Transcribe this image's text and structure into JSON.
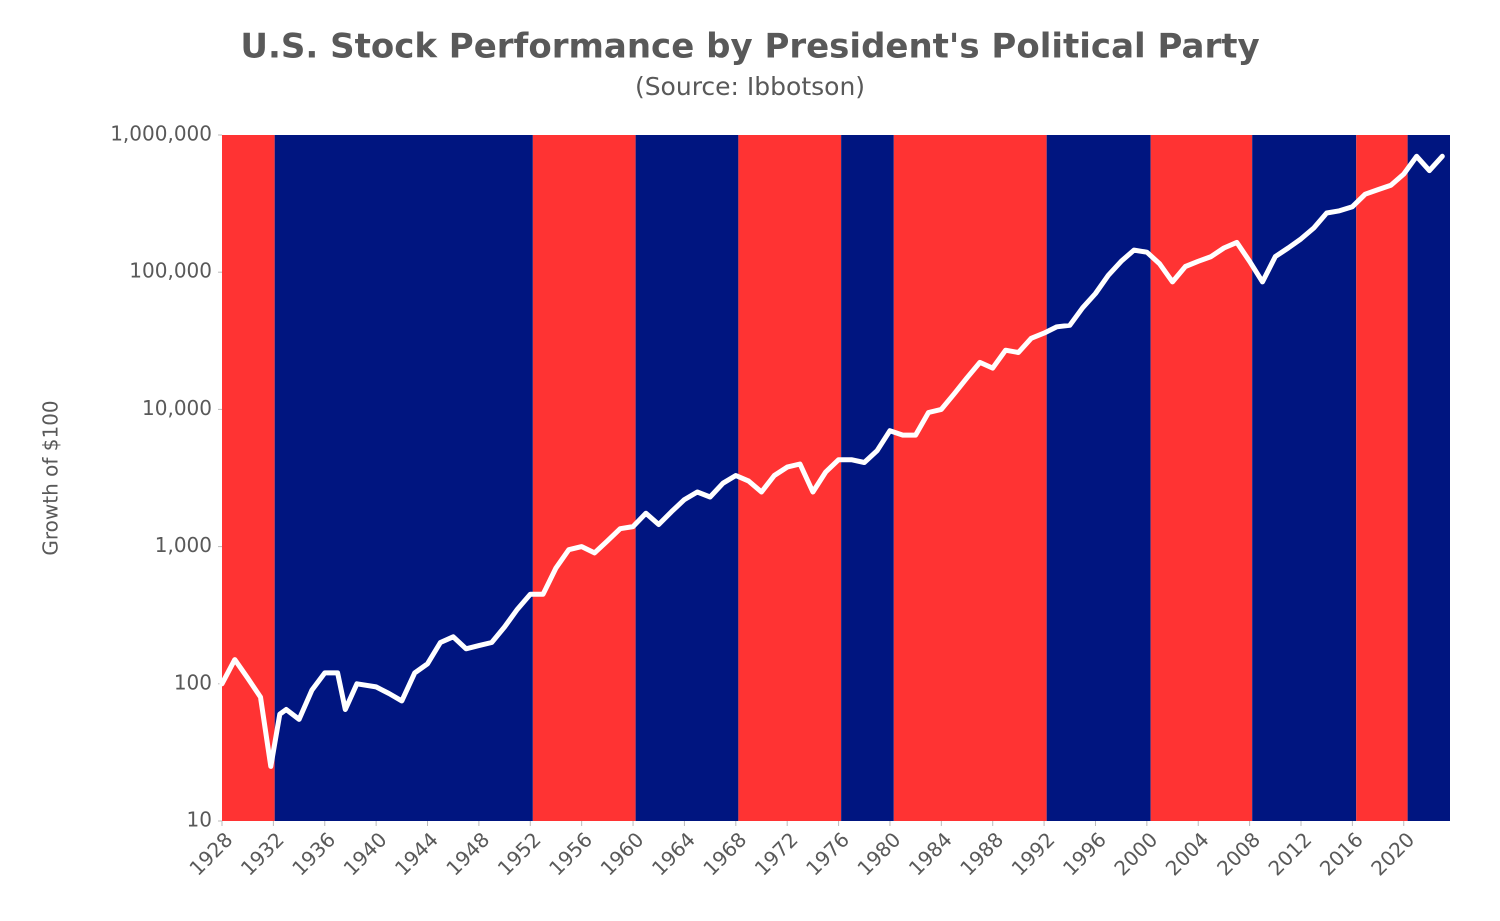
{
  "chart_data": {
    "type": "line",
    "title": "U.S. Stock Performance by President's Political Party",
    "subtitle": "(Source: Ibbotson)",
    "y_label": "Growth of $100",
    "log_scale": "y",
    "color": "#ffffff",
    "xlim": [
      1928,
      2023.6
    ],
    "ylim": [
      10,
      1000000
    ],
    "xticks": [
      1928,
      1932,
      1936,
      1940,
      1944,
      1948,
      1952,
      1956,
      1960,
      1964,
      1968,
      1972,
      1976,
      1980,
      1984,
      1988,
      1992,
      1996,
      2000,
      2004,
      2008,
      2012,
      2016,
      2020
    ],
    "yticks": [
      10,
      100,
      {
        "value": 1000,
        "label": "1,000"
      },
      {
        "value": 10000,
        "label": "10,000"
      },
      {
        "value": 100000,
        "label": "100,000"
      },
      {
        "value": 1000000,
        "label": "1,000,000"
      }
    ],
    "bands": [
      {
        "start": 1928,
        "end": 1932.1,
        "color": "#ff3333"
      },
      {
        "start": 1932.1,
        "end": 1952.2,
        "color": "#001580"
      },
      {
        "start": 1952.2,
        "end": 1960.2,
        "color": "#ff3333"
      },
      {
        "start": 1960.2,
        "end": 1968.2,
        "color": "#001580"
      },
      {
        "start": 1968.2,
        "end": 1976.2,
        "color": "#ff3333"
      },
      {
        "start": 1976.2,
        "end": 1980.3,
        "color": "#001580"
      },
      {
        "start": 1980.3,
        "end": 1992.2,
        "color": "#ff3333"
      },
      {
        "start": 1992.2,
        "end": 2000.3,
        "color": "#001580"
      },
      {
        "start": 2000.3,
        "end": 2008.2,
        "color": "#ff3333"
      },
      {
        "start": 2008.2,
        "end": 2016.3,
        "color": "#001580"
      },
      {
        "start": 2016.3,
        "end": 2020.3,
        "color": "#ff3333"
      },
      {
        "start": 2020.3,
        "end": 2023.6,
        "color": "#001580"
      }
    ],
    "x": [
      1928,
      1929,
      1930,
      1931,
      1931.8,
      1932.5,
      1933,
      1934,
      1935,
      1936,
      1937,
      1937.6,
      1938.5,
      1940,
      1941,
      1942,
      1943,
      1944,
      1945,
      1946,
      1947,
      1948,
      1949,
      1950,
      1951,
      1952,
      1953,
      1954,
      1955,
      1956,
      1957,
      1958,
      1959,
      1960,
      1961,
      1962,
      1963,
      1964,
      1965,
      1966,
      1967,
      1968,
      1969,
      1970,
      1971,
      1972,
      1973,
      1974,
      1975,
      1976,
      1977,
      1978,
      1979,
      1980,
      1981,
      1982,
      1983,
      1984,
      1985,
      1986,
      1987,
      1988,
      1989,
      1990,
      1991,
      1992,
      1993,
      1994,
      1995,
      1996,
      1997,
      1998,
      1999,
      2000,
      2001,
      2002,
      2003,
      2004,
      2005,
      2006,
      2007,
      2008,
      2009,
      2010,
      2011,
      2012,
      2013,
      2014,
      2015,
      2016,
      2017,
      2018,
      2019,
      2020,
      2021,
      2022,
      2023
    ],
    "values": [
      100,
      150,
      110,
      80,
      25,
      60,
      65,
      55,
      90,
      120,
      120,
      65,
      100,
      95,
      85,
      75,
      120,
      140,
      200,
      220,
      180,
      190,
      200,
      260,
      350,
      450,
      450,
      700,
      950,
      1000,
      900,
      1100,
      1350,
      1400,
      1750,
      1450,
      1800,
      2200,
      2500,
      2300,
      2900,
      3300,
      3000,
      2500,
      3300,
      3800,
      4000,
      2500,
      3500,
      4300,
      4300,
      4100,
      5000,
      7000,
      6500,
      6500,
      9500,
      10000,
      13000,
      17000,
      22000,
      20000,
      27000,
      26000,
      33000,
      36000,
      40000,
      41000,
      55000,
      70000,
      95000,
      120000,
      145000,
      140000,
      115000,
      85000,
      110000,
      120000,
      130000,
      150000,
      165000,
      120000,
      85000,
      130000,
      150000,
      175000,
      210000,
      270000,
      280000,
      300000,
      370000,
      400000,
      430000,
      520000,
      700000,
      550000,
      700000
    ]
  }
}
